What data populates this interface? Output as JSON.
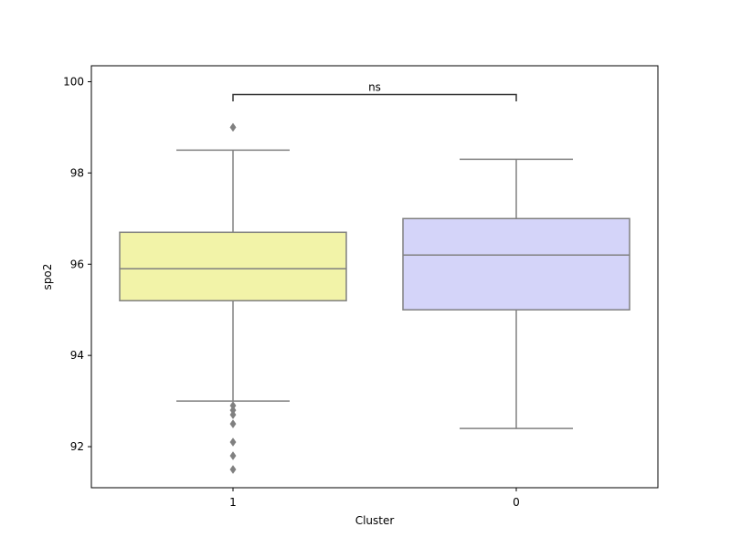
{
  "chart_data": {
    "type": "box",
    "xlabel": "Cluster",
    "ylabel": "spo2",
    "ylim": [
      91.1,
      100.35
    ],
    "yticks": [
      92,
      94,
      96,
      98,
      100
    ],
    "categories": [
      "1",
      "0"
    ],
    "boxes": [
      {
        "category": "1",
        "whisker_low": 93.0,
        "q1": 95.2,
        "median": 95.9,
        "q3": 96.7,
        "whisker_high": 98.5,
        "outliers": [
          99.0,
          92.9,
          92.8,
          92.7,
          92.5,
          92.1,
          91.8,
          91.5
        ],
        "color": "#f2f3a8"
      },
      {
        "category": "0",
        "whisker_low": 92.4,
        "q1": 95.0,
        "median": 96.2,
        "q3": 97.0,
        "whisker_high": 98.3,
        "outliers": [],
        "color": "#d4d4f9"
      }
    ],
    "annotation": {
      "text": "ns",
      "between": [
        "1",
        "0"
      ],
      "y": 99.72,
      "tip_y": 99.57
    },
    "edge_color": "#808080",
    "grid": false
  }
}
